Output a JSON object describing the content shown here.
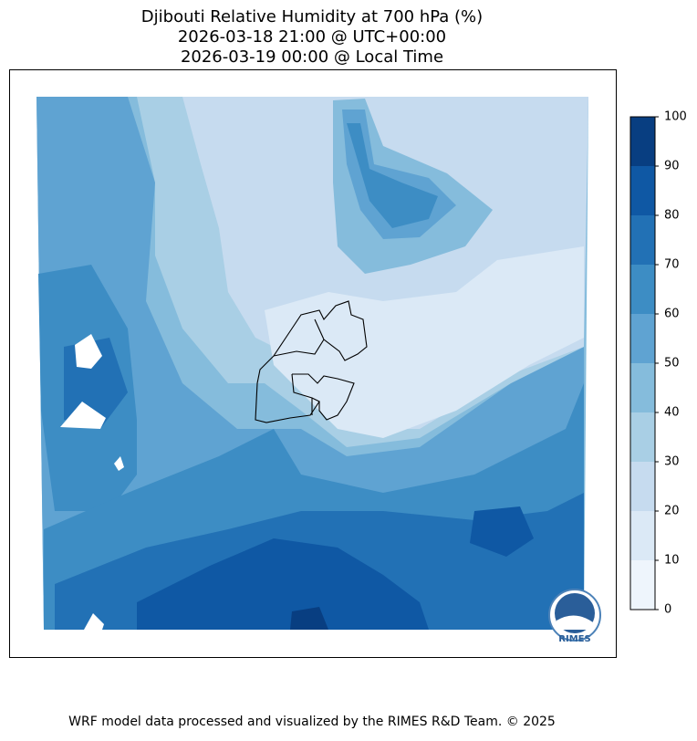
{
  "title": [
    "Djibouti Relative Humidity at 700 hPa (%)",
    "2026-03-18 21:00 @ UTC+00:00",
    "2026-03-19 00:00 @ Local Time"
  ],
  "colorbar": {
    "lim": [
      0,
      100
    ],
    "ticks": [
      0,
      10,
      20,
      30,
      40,
      50,
      60,
      70,
      80,
      90,
      100
    ],
    "colors": [
      "#eef5fc",
      "#dbe9f6",
      "#c6dbef",
      "#a9cfe5",
      "#85bcdc",
      "#5fa3d2",
      "#3d8dc4",
      "#2271b5",
      "#0f58a4",
      "#083e81"
    ]
  },
  "logo": "RIMES",
  "footer": "WRF model data processed and visualized by the RIMES R&D Team. © 2025"
}
